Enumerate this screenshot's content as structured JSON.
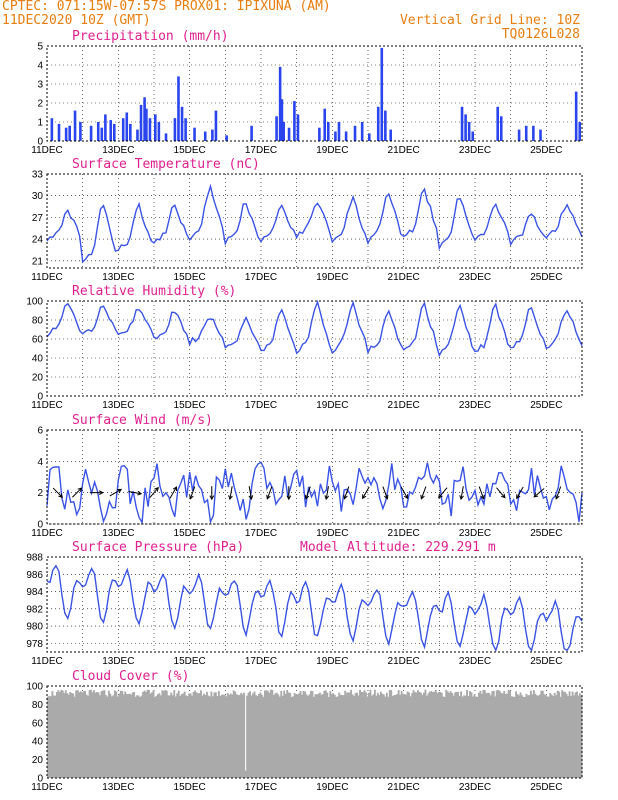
{
  "header": {
    "line1": "CPTEC:  071:15W-07:57S  PROX01: IPIXUNA (AM)",
    "line2_left": "11DEC2020 10Z (GMT)",
    "line2_right": "Vertical Grid Line: 10Z",
    "line3_right": "TQ0126L028"
  },
  "days": [
    "11DEC",
    "13DEC",
    "15DEC",
    "17DEC",
    "19DEC",
    "21DEC",
    "23DEC",
    "25DEC"
  ],
  "colors": {
    "header": "#e87e10",
    "title": "#e0208f",
    "line": "#3b54e6",
    "bar": "#2a45ee",
    "cloud": "#aaaaaa"
  },
  "chart_data": [
    {
      "type": "bar",
      "title": "Precipitation (mm/h)",
      "ylim": [
        0,
        5
      ],
      "yticks": [
        0,
        1,
        2,
        3,
        4,
        5
      ],
      "x_days": [
        0,
        15
      ],
      "spikes": [
        [
          0.1,
          1.2
        ],
        [
          0.3,
          0.9
        ],
        [
          0.5,
          0.7
        ],
        [
          0.6,
          0.8
        ],
        [
          0.75,
          1.6
        ],
        [
          0.9,
          1.0
        ],
        [
          1.2,
          0.8
        ],
        [
          1.4,
          1.0
        ],
        [
          1.5,
          0.7
        ],
        [
          1.6,
          1.4
        ],
        [
          1.75,
          1.1
        ],
        [
          1.85,
          0.9
        ],
        [
          2.1,
          1.2
        ],
        [
          2.2,
          1.5
        ],
        [
          2.3,
          0.9
        ],
        [
          2.5,
          0.6
        ],
        [
          2.6,
          1.9
        ],
        [
          2.7,
          2.3
        ],
        [
          2.75,
          1.7
        ],
        [
          2.85,
          1.2
        ],
        [
          3.0,
          1.4
        ],
        [
          3.1,
          1.0
        ],
        [
          3.3,
          0.4
        ],
        [
          3.55,
          1.2
        ],
        [
          3.65,
          3.4
        ],
        [
          3.75,
          1.8
        ],
        [
          3.85,
          1.2
        ],
        [
          4.1,
          0.7
        ],
        [
          4.4,
          0.5
        ],
        [
          4.6,
          0.6
        ],
        [
          4.7,
          1.6
        ],
        [
          5.0,
          0.3
        ],
        [
          5.7,
          0.8
        ],
        [
          6.4,
          1.3
        ],
        [
          6.5,
          3.9
        ],
        [
          6.55,
          2.2
        ],
        [
          6.6,
          1.0
        ],
        [
          6.75,
          0.7
        ],
        [
          6.9,
          2.1
        ],
        [
          7.0,
          1.4
        ],
        [
          7.6,
          0.7
        ],
        [
          7.75,
          1.7
        ],
        [
          7.85,
          1.0
        ],
        [
          8.05,
          0.5
        ],
        [
          8.15,
          1.0
        ],
        [
          8.35,
          0.5
        ],
        [
          8.6,
          0.8
        ],
        [
          8.8,
          1.0
        ],
        [
          9.0,
          0.4
        ],
        [
          9.25,
          1.8
        ],
        [
          9.35,
          4.9
        ],
        [
          9.45,
          1.6
        ],
        [
          9.6,
          0.6
        ],
        [
          11.6,
          1.8
        ],
        [
          11.7,
          1.4
        ],
        [
          11.8,
          1.0
        ],
        [
          11.9,
          0.5
        ],
        [
          12.6,
          1.8
        ],
        [
          12.7,
          1.3
        ],
        [
          13.2,
          0.6
        ],
        [
          13.4,
          0.8
        ],
        [
          13.6,
          0.8
        ],
        [
          13.8,
          0.6
        ],
        [
          14.8,
          2.6
        ],
        [
          14.9,
          1.0
        ]
      ]
    },
    {
      "type": "line",
      "title": "Surface Temperature (nC)",
      "ylim": [
        20,
        33
      ],
      "yticks": [
        21,
        24,
        27,
        30,
        33
      ],
      "x_days": [
        0,
        15
      ],
      "mins": [
        24.0,
        20.5,
        22.5,
        23.5,
        24.0,
        23.5,
        24.0,
        24.5,
        23.5,
        23.5,
        24.0,
        23.0,
        24.0,
        23.5,
        24.5
      ],
      "maxs": [
        26.0,
        28.0,
        29.5,
        29.0,
        29.0,
        31.5,
        29.5,
        29.0,
        29.5,
        30.0,
        31.0,
        31.5,
        30.5,
        29.0,
        28.0,
        29.0
      ]
    },
    {
      "type": "line",
      "title": "Relative Humidity (%)",
      "ylim": [
        0,
        100
      ],
      "yticks": [
        0,
        20,
        40,
        60,
        80,
        100
      ],
      "x_days": [
        0,
        15
      ],
      "mins": [
        65,
        66,
        64,
        60,
        57,
        50,
        47,
        47,
        48,
        47,
        47,
        45,
        45,
        50,
        52
      ],
      "maxs": [
        97,
        98,
        97,
        93,
        90,
        86,
        84,
        93,
        100,
        100,
        90,
        99,
        97,
        98,
        97,
        95
      ]
    },
    {
      "type": "line",
      "title": "Surface Wind (m/s)",
      "ylim": [
        0,
        6
      ],
      "yticks": [
        0,
        2,
        4,
        6
      ],
      "x_days": [
        0,
        15
      ],
      "arrows_dir_deg": [
        135,
        45,
        90,
        60,
        100,
        40,
        30,
        200,
        180,
        190,
        170,
        200,
        180,
        200,
        190,
        200,
        210,
        160,
        150,
        200,
        220,
        190,
        160,
        140,
        210,
        230,
        200
      ]
    },
    {
      "type": "line",
      "title": "Surface Pressure (hPa)",
      "annotation": "Model Altitude: 229.291  m",
      "ylim": [
        977,
        988
      ],
      "yticks": [
        978,
        980,
        982,
        984,
        986,
        988
      ],
      "x_days": [
        0,
        15
      ]
    },
    {
      "type": "area",
      "title": "Cloud Cover (%)",
      "ylim": [
        0,
        100
      ],
      "yticks": [
        0,
        20,
        40,
        60,
        80,
        100
      ],
      "x_days": [
        0,
        15
      ],
      "level": 92
    }
  ]
}
